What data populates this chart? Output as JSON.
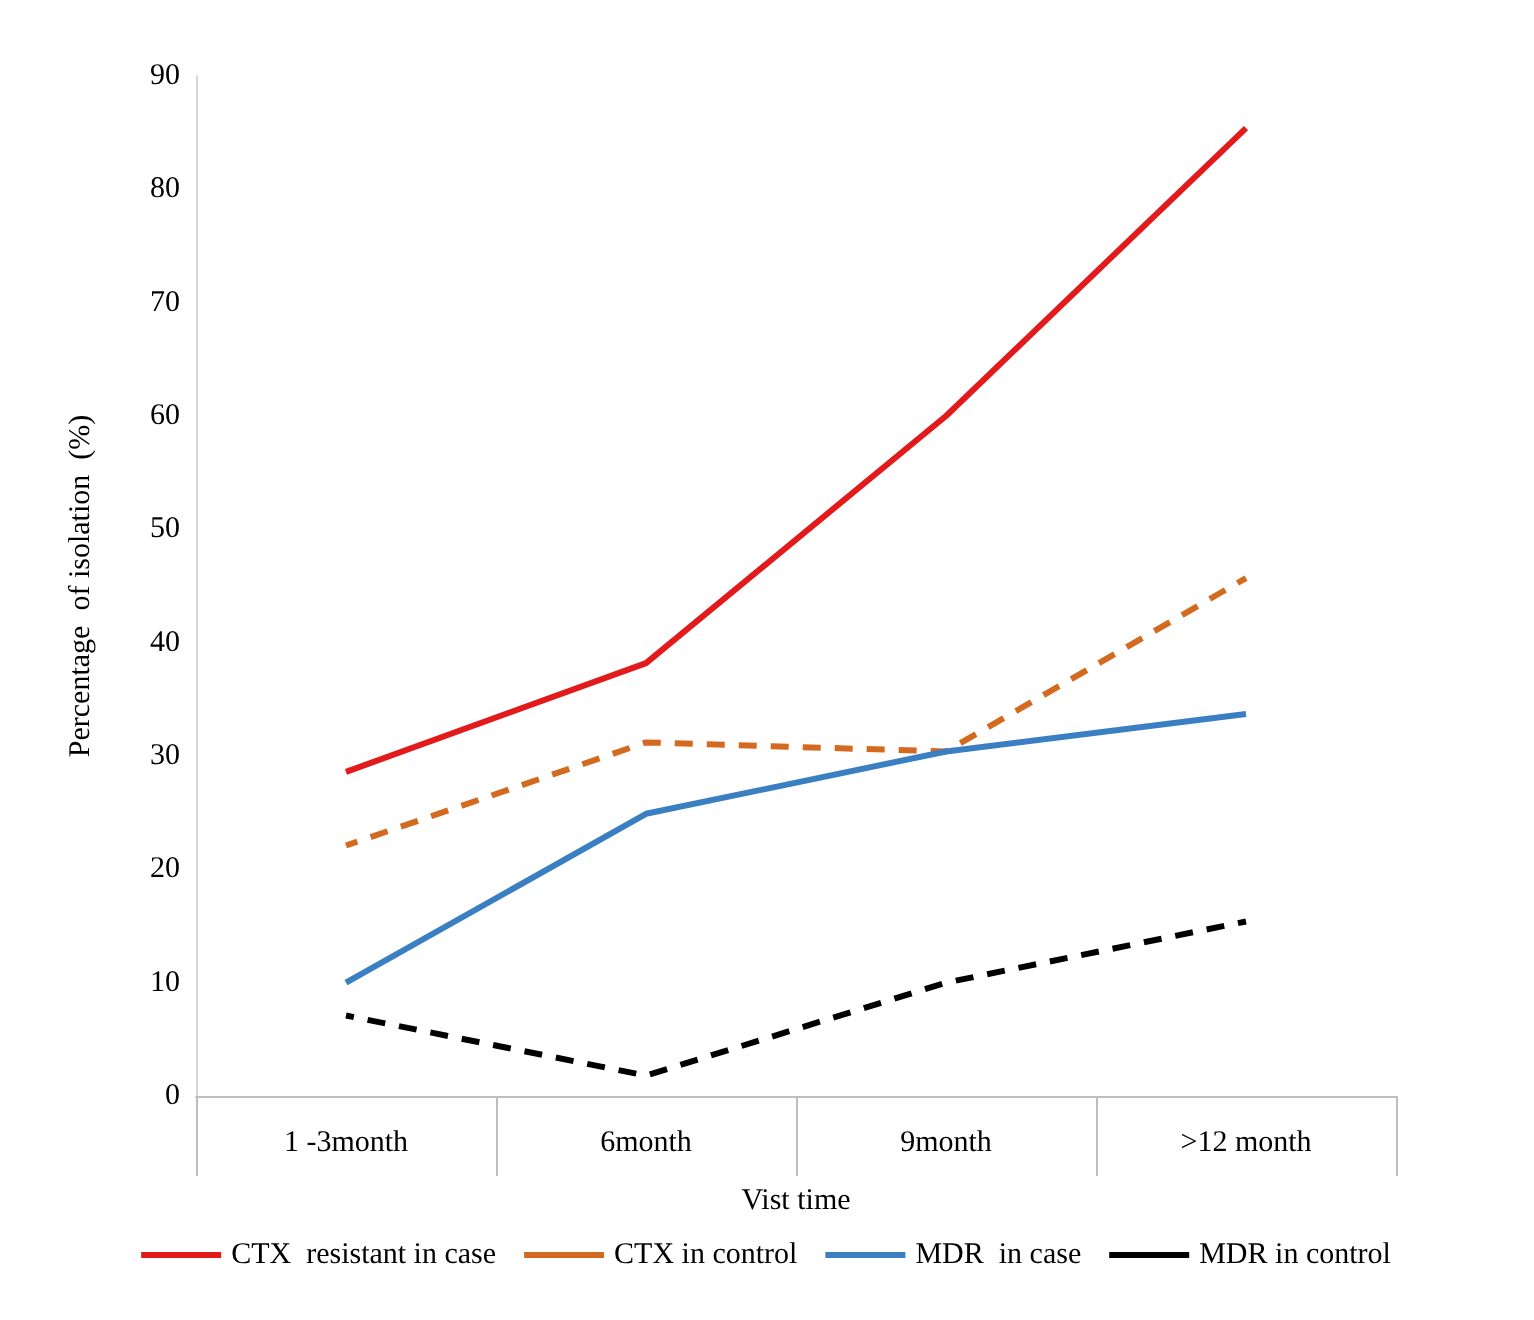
{
  "chart_data": {
    "type": "line",
    "xlabel": "Vist time",
    "ylabel": "Percentage  of isolation  (%)",
    "categories": [
      "1 -3month",
      "6month",
      "9month",
      ">12 month"
    ],
    "series": [
      {
        "name": "CTX  resistant in case",
        "color": "#e31a1c",
        "values": [
          28.6,
          38.2,
          60,
          85.4
        ],
        "line_style": "solid"
      },
      {
        "name": "CTX in control",
        "color": "#d46a1f",
        "values": [
          22.1,
          31.2,
          30.4,
          45.7
        ],
        "line_style": "dashed"
      },
      {
        "name": "MDR  in case",
        "color": "#3a7fc1",
        "values": [
          10,
          24.9,
          30.4,
          33.7
        ],
        "line_style": "solid"
      },
      {
        "name": "MDR in control",
        "color": "#000000",
        "values": [
          7.1,
          1.8,
          10,
          15.4
        ],
        "line_style": "dashed"
      }
    ],
    "ylim": [
      0,
      90
    ],
    "yticks": [
      0,
      10,
      20,
      30,
      40,
      50,
      60,
      70,
      80,
      90
    ],
    "grid": false,
    "legend": "bottom",
    "marker": "none"
  }
}
